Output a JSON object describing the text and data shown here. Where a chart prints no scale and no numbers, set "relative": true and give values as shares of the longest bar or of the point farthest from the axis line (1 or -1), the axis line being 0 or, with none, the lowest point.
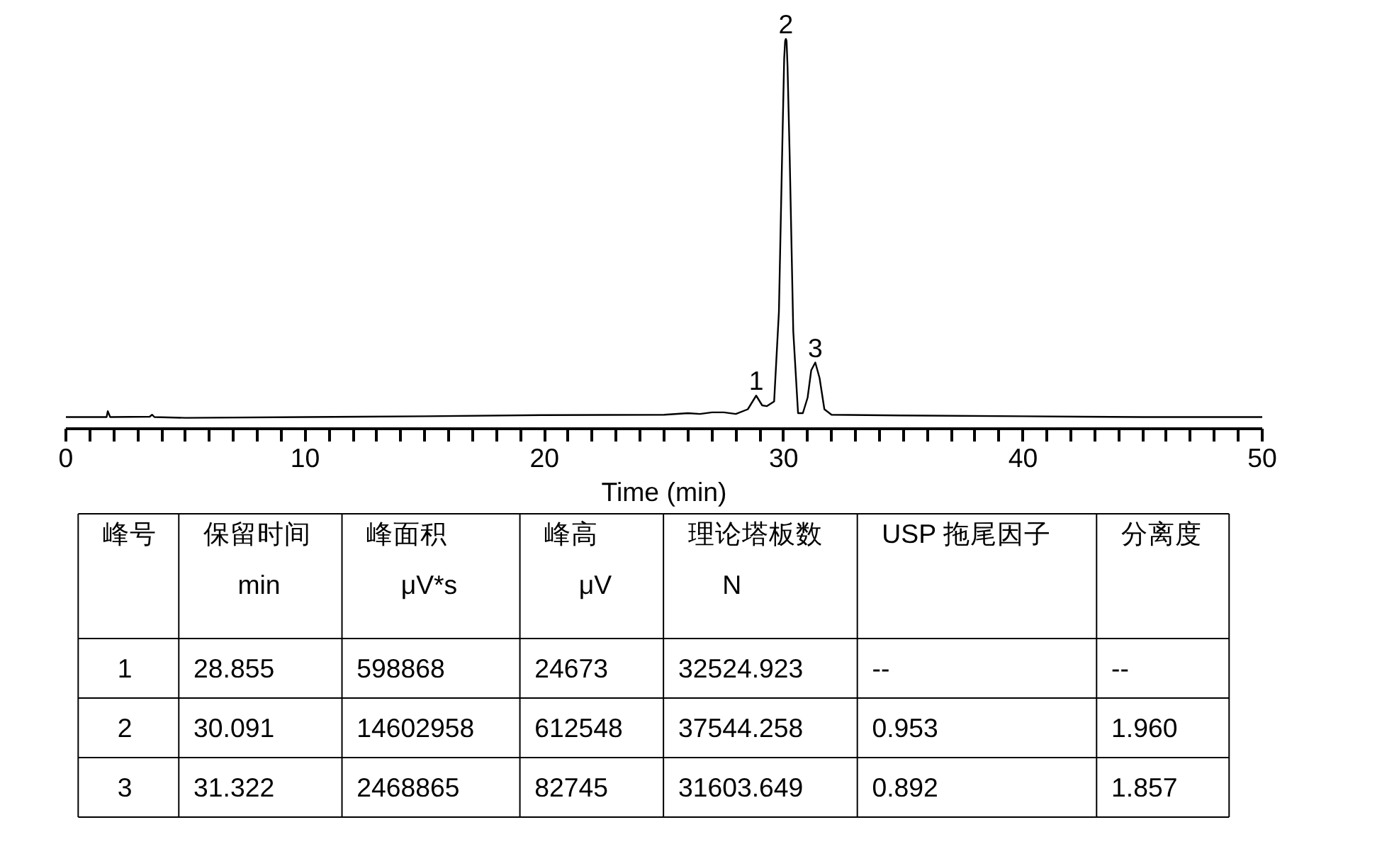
{
  "chart_data": [
    {
      "type": "line",
      "relative": true,
      "xlabel": "Time (min)",
      "xlim": [
        0,
        50
      ],
      "line_style": "solid",
      "xticks": [
        0,
        {
          "value": 1,
          "label": null
        },
        {
          "value": 2,
          "label": null
        },
        {
          "value": 3,
          "label": null
        },
        {
          "value": 4,
          "label": null
        },
        {
          "value": 5,
          "label": null
        },
        {
          "value": 6,
          "label": null
        },
        {
          "value": 7,
          "label": null
        },
        {
          "value": 8,
          "label": null
        },
        {
          "value": 9,
          "label": null
        },
        10,
        {
          "value": 11,
          "label": null
        },
        {
          "value": 12,
          "label": null
        },
        {
          "value": 13,
          "label": null
        },
        {
          "value": 14,
          "label": null
        },
        {
          "value": 15,
          "label": null
        },
        {
          "value": 16,
          "label": null
        },
        {
          "value": 17,
          "label": null
        },
        {
          "value": 18,
          "label": null
        },
        {
          "value": 19,
          "label": null
        },
        20,
        {
          "value": 21,
          "label": null
        },
        {
          "value": 22,
          "label": null
        },
        {
          "value": 23,
          "label": null
        },
        {
          "value": 24,
          "label": null
        },
        {
          "value": 25,
          "label": null
        },
        {
          "value": 26,
          "label": null
        },
        {
          "value": 27,
          "label": null
        },
        {
          "value": 28,
          "label": null
        },
        {
          "value": 29,
          "label": null
        },
        30,
        {
          "value": 31,
          "label": null
        },
        {
          "value": 32,
          "label": null
        },
        {
          "value": 33,
          "label": null
        },
        {
          "value": 34,
          "label": null
        },
        {
          "value": 35,
          "label": null
        },
        {
          "value": 36,
          "label": null
        },
        {
          "value": 37,
          "label": null
        },
        {
          "value": 38,
          "label": null
        },
        {
          "value": 39,
          "label": null
        },
        40,
        {
          "value": 41,
          "label": null
        },
        {
          "value": 42,
          "label": null
        },
        {
          "value": 43,
          "label": null
        },
        {
          "value": 44,
          "label": null
        },
        {
          "value": 45,
          "label": null
        },
        {
          "value": 46,
          "label": null
        },
        {
          "value": 47,
          "label": null
        },
        {
          "value": 48,
          "label": null
        },
        {
          "value": 49,
          "label": null
        },
        50
      ],
      "series": [
        {
          "color": "#000000",
          "x": [
            0,
            1.7,
            1.75,
            1.85,
            3.5,
            3.6,
            3.7,
            5,
            10,
            15,
            20,
            25,
            26,
            26.5,
            27,
            27.5,
            28,
            28.5,
            28.85,
            29.1,
            29.3,
            29.6,
            29.8,
            29.95,
            30.02,
            30.06,
            30.09,
            30.12,
            30.16,
            30.25,
            30.4,
            30.6,
            30.8,
            31.0,
            31.15,
            31.32,
            31.5,
            31.7,
            32,
            35,
            40,
            45,
            50
          ],
          "values": [
            0.03,
            0.03,
            0.045,
            0.03,
            0.031,
            0.036,
            0.03,
            0.028,
            0.03,
            0.032,
            0.035,
            0.036,
            0.04,
            0.038,
            0.042,
            0.042,
            0.038,
            0.05,
            0.085,
            0.06,
            0.058,
            0.07,
            0.3,
            0.75,
            0.95,
            0.995,
            1.0,
            0.995,
            0.93,
            0.7,
            0.25,
            0.04,
            0.04,
            0.08,
            0.15,
            0.17,
            0.13,
            0.05,
            0.036,
            0.034,
            0.032,
            0.03,
            0.03
          ]
        }
      ],
      "annotations": [
        {
          "text": "1",
          "x": 28.855,
          "y": 0.085
        },
        {
          "text": "2",
          "x": 30.091,
          "y": 1.0
        },
        {
          "text": "3",
          "x": 31.322,
          "y": 0.17
        }
      ]
    },
    {
      "type": "other",
      "categories": [
        "峰号",
        "保留时间",
        "峰面积",
        "峰高",
        "理论塔板数",
        "USP 拖尾因子",
        "分离度"
      ],
      "cell_labels": [
        [
          null,
          "min",
          "μV*s",
          "μV",
          "N",
          null,
          null
        ],
        [
          "1",
          "28.855",
          "598868",
          "24673",
          "32524.923",
          "--",
          "--"
        ],
        [
          "2",
          "30.091",
          "14602958",
          "612548",
          "37544.258",
          "0.953",
          "1.960"
        ],
        [
          "3",
          "31.322",
          "2468865",
          "82745",
          "31603.649",
          "0.892",
          "1.857"
        ]
      ]
    }
  ]
}
